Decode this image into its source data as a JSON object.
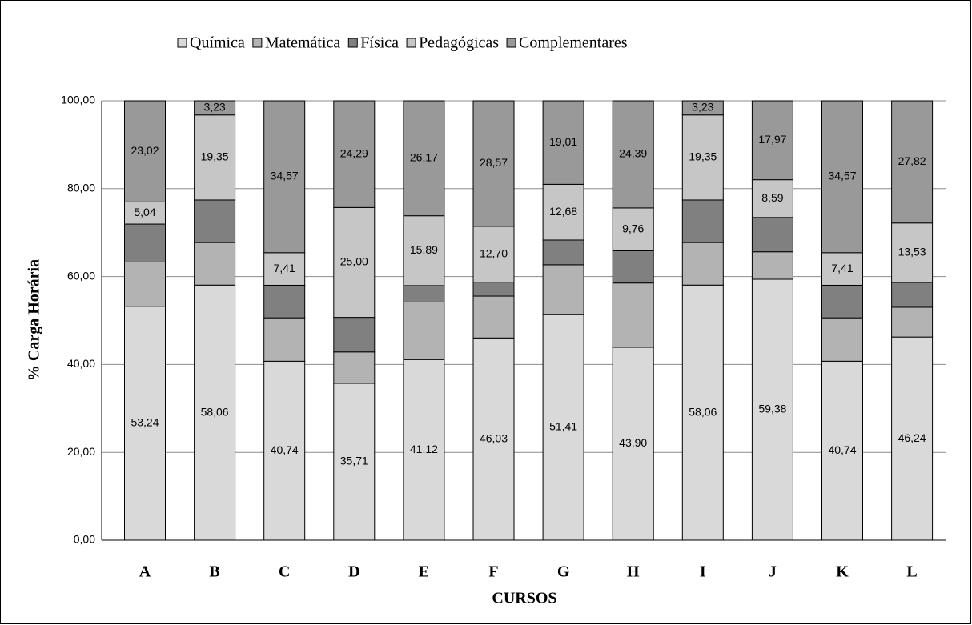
{
  "chart_data": {
    "type": "stacked_bar",
    "categories": [
      "A",
      "B",
      "C",
      "D",
      "E",
      "F",
      "G",
      "H",
      "I",
      "J",
      "K",
      "L"
    ],
    "series": [
      {
        "name": "Química",
        "color": "#d9d9d9",
        "values": [
          53.24,
          58.06,
          40.74,
          35.71,
          41.12,
          46.03,
          51.41,
          43.9,
          58.06,
          59.38,
          40.74,
          46.24
        ],
        "value_labels": [
          "53,24",
          "58,06",
          "40,74",
          "35,71",
          "41,12",
          "46,03",
          "51,41",
          "43,90",
          "58,06",
          "59,38",
          "40,74",
          "46,24"
        ]
      },
      {
        "name": "Matemática",
        "color": "#b3b3b3",
        "values": [
          10.07,
          9.68,
          9.87,
          7.14,
          13.08,
          9.52,
          11.27,
          14.63,
          9.68,
          6.25,
          9.87,
          6.77
        ]
      },
      {
        "name": "Física",
        "color": "#808080",
        "values": [
          8.63,
          9.68,
          7.41,
          7.86,
          3.74,
          3.18,
          5.63,
          7.32,
          9.68,
          7.81,
          7.41,
          5.64
        ]
      },
      {
        "name": "Pedagógicas",
        "color": "#c6c6c6",
        "values": [
          5.04,
          19.35,
          7.41,
          25.0,
          15.89,
          12.7,
          12.68,
          9.76,
          19.35,
          8.59,
          7.41,
          13.53
        ],
        "value_labels": [
          "5,04",
          "19,35",
          "7,41",
          "25,00",
          "15,89",
          "12,70",
          "12,68",
          "9,76",
          "19,35",
          "8,59",
          "7,41",
          "13,53"
        ]
      },
      {
        "name": "Complementares",
        "color": "#999999",
        "values": [
          23.02,
          3.23,
          34.57,
          24.29,
          26.17,
          28.57,
          19.01,
          24.39,
          3.23,
          17.97,
          34.57,
          27.82
        ],
        "value_labels": [
          "23,02",
          "3,23",
          "34,57",
          "24,29",
          "26,17",
          "28,57",
          "19,01",
          "24,39",
          "3,23",
          "17,97",
          "34,57",
          "27,82"
        ]
      }
    ],
    "ylabel": "% Carga Horária",
    "xlabel": "CURSOS",
    "ylim": [
      0,
      100
    ],
    "yticks": [
      {
        "value": 0,
        "label": "0,00"
      },
      {
        "value": 20,
        "label": "20,00"
      },
      {
        "value": 40,
        "label": "40,00"
      },
      {
        "value": 60,
        "label": "60,00"
      },
      {
        "value": 80,
        "label": "80,00"
      },
      {
        "value": 100,
        "label": "100,00"
      }
    ],
    "grid": true,
    "legend": "top"
  }
}
